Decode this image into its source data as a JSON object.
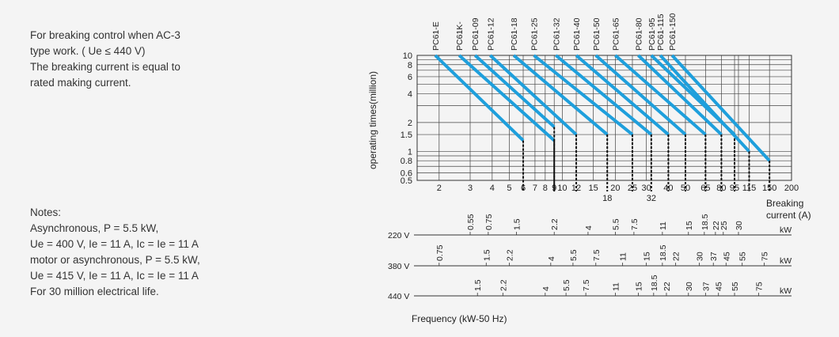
{
  "intro": {
    "lines": [
      "For breaking control when AC-3",
      "type work. ( Ue ≤ 440 V)",
      "The breaking current is equal to",
      "rated making current."
    ]
  },
  "notes": {
    "heading": "Notes:",
    "lines": [
      "Asynchronous, P = 5.5 kW,",
      "Ue = 400 V, Ie = 11 A, Ic = Ie = 11 A",
      "motor or asynchronous, P = 5.5 kW,",
      "Ue = 415 V, Ie = 11 A, Ic = Ie = 11 A",
      "For 30 million electrical life."
    ]
  },
  "chart_data": {
    "type": "line",
    "xlabel": "Breaking current (A)",
    "xlabel_lines": [
      "Breaking",
      "current (A)"
    ],
    "ylabel": "operating times(million)",
    "x_scale": "log",
    "y_scale": "log",
    "xlim": [
      1.5,
      200
    ],
    "ylim": [
      0.5,
      10
    ],
    "x_ticks": [
      2,
      3,
      4,
      5,
      6,
      7,
      8,
      9,
      10,
      12,
      15,
      18,
      20,
      25,
      30,
      32,
      40,
      50,
      65,
      80,
      95,
      115,
      150,
      200
    ],
    "x_ticks_low": [
      18,
      32
    ],
    "y_ticks": [
      10,
      8,
      6,
      4,
      2,
      1.5,
      1,
      0.8,
      0.6,
      0.5
    ],
    "x_grid": [
      2,
      3,
      4,
      5,
      6,
      7,
      8,
      9,
      10,
      12,
      15,
      18,
      20,
      25,
      30,
      32,
      40,
      50,
      65,
      80,
      95,
      100,
      115,
      150,
      200
    ],
    "y_grid": [
      10,
      9,
      8,
      7,
      6,
      5,
      4,
      3,
      2,
      1.5,
      1,
      0.9,
      0.8,
      0.7,
      0.6,
      0.5
    ],
    "line_color": "#1e9fdc",
    "series": [
      {
        "name": "PC61-E",
        "x_label": 1.9,
        "x_start": 1.9,
        "x_end": 6,
        "y_end": 1.3
      },
      {
        "name": "PC61K-",
        "x_label": 2.6,
        "x_start": 2.6,
        "x_end": 9,
        "y_end": 1.3
      },
      {
        "name": "PC61-09",
        "x_label": 3.2,
        "x_start": 3.2,
        "x_end": 9,
        "y_end": 1.8
      },
      {
        "name": "PC61-12",
        "x_label": 3.9,
        "x_start": 3.9,
        "x_end": 12,
        "y_end": 1.5
      },
      {
        "name": "PC61-18",
        "x_label": 5.3,
        "x_start": 5.3,
        "x_end": 18,
        "y_end": 1.5
      },
      {
        "name": "PC61-25",
        "x_label": 6.9,
        "x_start": 6.9,
        "x_end": 25,
        "y_end": 1.5
      },
      {
        "name": "PC61-32",
        "x_label": 9.2,
        "x_start": 9.2,
        "x_end": 32,
        "y_end": 1.5
      },
      {
        "name": "PC61-40",
        "x_label": 12,
        "x_start": 12,
        "x_end": 40,
        "y_end": 1.5
      },
      {
        "name": "PC61-50",
        "x_label": 15.5,
        "x_start": 15.5,
        "x_end": 50,
        "y_end": 1.5
      },
      {
        "name": "PC61-65",
        "x_label": 20,
        "x_start": 20,
        "x_end": 65,
        "y_end": 1.5
      },
      {
        "name": "PC61-80",
        "x_label": 27,
        "x_start": 27,
        "x_end": 80,
        "y_end": 1.5
      },
      {
        "name": "PC61-95",
        "x_label": 32,
        "x_start": 32,
        "x_end": 95,
        "y_end": 1.5
      },
      {
        "name": "PC61-115",
        "x_label": 36,
        "x_start": 36,
        "x_end": 115,
        "y_end": 1.0
      },
      {
        "name": "PC61-150",
        "x_label": 42,
        "x_start": 42,
        "x_end": 150,
        "y_end": 0.8
      }
    ],
    "power_scales": [
      {
        "voltage": "220 V",
        "unit": "kW",
        "ticks": [
          {
            "v": "0.55",
            "x": 3
          },
          {
            "v": "0.75",
            "x": 3.8
          },
          {
            "v": "1.5",
            "x": 5.5
          },
          {
            "v": "2.2",
            "x": 9
          },
          {
            "v": "4",
            "x": 14
          },
          {
            "v": "5.5",
            "x": 20
          },
          {
            "v": "7.5",
            "x": 25.5
          },
          {
            "v": "11",
            "x": 37
          },
          {
            "v": "15",
            "x": 52
          },
          {
            "v": "18.5",
            "x": 64
          },
          {
            "v": "22",
            "x": 74
          },
          {
            "v": "25",
            "x": 82
          },
          {
            "v": "30",
            "x": 100
          }
        ]
      },
      {
        "voltage": "380 V",
        "unit": "kW",
        "ticks": [
          {
            "v": "0.75",
            "x": 2
          },
          {
            "v": "1.5",
            "x": 3.7
          },
          {
            "v": "2.2",
            "x": 5
          },
          {
            "v": "4",
            "x": 8.6
          },
          {
            "v": "5.5",
            "x": 11.5
          },
          {
            "v": "7.5",
            "x": 15.5
          },
          {
            "v": "11",
            "x": 22
          },
          {
            "v": "15",
            "x": 30
          },
          {
            "v": "18.5",
            "x": 37
          },
          {
            "v": "22",
            "x": 44
          },
          {
            "v": "30",
            "x": 60
          },
          {
            "v": "37",
            "x": 72
          },
          {
            "v": "45",
            "x": 85
          },
          {
            "v": "55",
            "x": 105
          },
          {
            "v": "75",
            "x": 140
          }
        ]
      },
      {
        "voltage": "440 V",
        "unit": "kW",
        "ticks": [
          {
            "v": "1.5",
            "x": 3.3
          },
          {
            "v": "2.2",
            "x": 4.6
          },
          {
            "v": "4",
            "x": 8
          },
          {
            "v": "5.5",
            "x": 10.5
          },
          {
            "v": "7.5",
            "x": 13.6
          },
          {
            "v": "11",
            "x": 20
          },
          {
            "v": "15",
            "x": 27
          },
          {
            "v": "18.5",
            "x": 33
          },
          {
            "v": "22",
            "x": 39
          },
          {
            "v": "30",
            "x": 52
          },
          {
            "v": "37",
            "x": 65
          },
          {
            "v": "45",
            "x": 77
          },
          {
            "v": "55",
            "x": 95
          },
          {
            "v": "75",
            "x": 130
          }
        ]
      }
    ],
    "freq_label": "Frequency (kW-50 Hz)"
  }
}
